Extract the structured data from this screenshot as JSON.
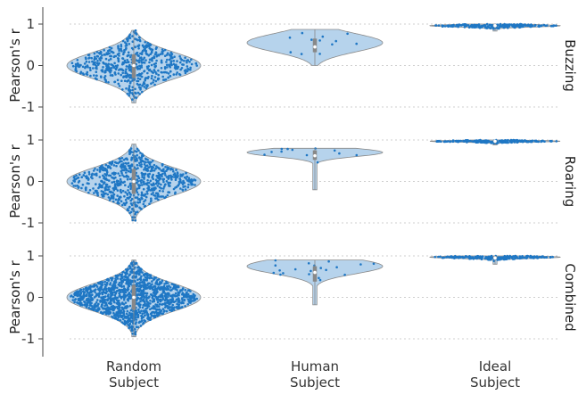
{
  "chart_data": {
    "type": "violin",
    "facet_rows": [
      "Buzzing",
      "Roaring",
      "Combined"
    ],
    "categories": [
      "Random Subject",
      "Human Subject",
      "Ideal Subject"
    ],
    "ylabel": "Pearson's r",
    "ylim": [
      -1,
      1
    ],
    "yticks": [
      1,
      0,
      -1
    ],
    "ytick_labels": [
      "1",
      "0",
      "-1"
    ],
    "xtick_labels": [
      [
        "Random",
        "Subject"
      ],
      [
        "Human",
        "Subject"
      ],
      [
        "Ideal",
        "Subject"
      ]
    ],
    "grid": "horizontal dotted",
    "colors": {
      "violin_fill": "#b6d3ec",
      "violin_edge": "#8a8a8a",
      "points": "#1f77c4",
      "box": "#888888",
      "median": "#ffffff"
    },
    "panels": [
      [
        {
          "min": -0.9,
          "max": 0.85,
          "median": 0.0,
          "q1": -0.3,
          "q3": 0.27,
          "n": 600,
          "peak": 0.0,
          "sd": 0.32
        },
        {
          "min": 0.0,
          "max": 0.87,
          "median": 0.45,
          "q1": 0.32,
          "q3": 0.65,
          "n": 12,
          "peak": 0.55,
          "sd": 0.22
        },
        {
          "min": 0.83,
          "max": 1.0,
          "median": 0.96,
          "q1": 0.94,
          "q3": 0.98,
          "n": 200,
          "peak": 0.96,
          "sd": 0.03
        }
      ],
      [
        {
          "min": -0.95,
          "max": 0.9,
          "median": 0.0,
          "q1": -0.3,
          "q3": 0.3,
          "n": 700,
          "peak": 0.0,
          "sd": 0.33
        },
        {
          "min": -0.2,
          "max": 0.8,
          "median": 0.62,
          "q1": 0.52,
          "q3": 0.75,
          "n": 12,
          "peak": 0.7,
          "sd": 0.1
        },
        {
          "min": 0.88,
          "max": 1.0,
          "median": 0.97,
          "q1": 0.95,
          "q3": 0.99,
          "n": 200,
          "peak": 0.97,
          "sd": 0.02
        }
      ],
      [
        {
          "min": -0.95,
          "max": 0.9,
          "median": 0.0,
          "q1": -0.3,
          "q3": 0.3,
          "n": 1300,
          "peak": 0.0,
          "sd": 0.33
        },
        {
          "min": -0.18,
          "max": 0.9,
          "median": 0.6,
          "q1": 0.38,
          "q3": 0.75,
          "n": 20,
          "peak": 0.75,
          "sd": 0.18
        },
        {
          "min": 0.8,
          "max": 1.0,
          "median": 0.95,
          "q1": 0.93,
          "q3": 0.99,
          "n": 200,
          "peak": 0.97,
          "sd": 0.03
        }
      ]
    ]
  }
}
